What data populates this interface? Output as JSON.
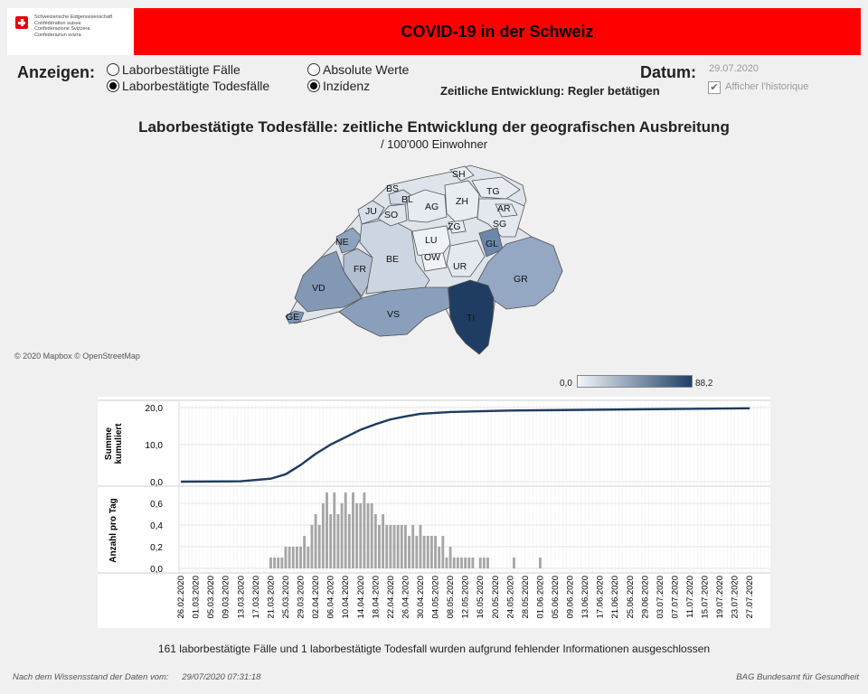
{
  "header": {
    "logo_lines": [
      "Schweizerische Eidgenossenschaft",
      "Confédération suisse",
      "Confederazione Svizzera",
      "Confederaziun svizra"
    ],
    "title": "COVID-19 in der Schweiz"
  },
  "controls": {
    "anzeigen_label": "Anzeigen:",
    "radio_faelle": "Laborbestätigte Fälle",
    "radio_todesfaelle": "Laborbestätigte Todesfälle",
    "radio_absolute": "Absolute Werte",
    "radio_inzidenz": "Inzidenz",
    "selected_measure": "Laborbestätigte Todesfälle",
    "selected_unit": "Inzidenz",
    "datum_label": "Datum:",
    "datum_value": "29.07.2020",
    "entwicklung_label": "Zeitliche Entwicklung: Regler betätigen",
    "historique_label": "Afficher l'historique",
    "historique_checked": true
  },
  "map": {
    "title": "Laborbestätigte Todesfälle: zeitliche Entwicklung der geografischen Ausbreitung",
    "subtitle": "/ 100'000 Einwohner",
    "attribution": "© 2020 Mapbox © OpenStreetMap",
    "legend_min": "0,0",
    "legend_max": "88,2",
    "cantons": [
      "SH",
      "BS",
      "BL",
      "TG",
      "ZH",
      "JU",
      "SO",
      "AG",
      "AR",
      "SG",
      "ZG",
      "NE",
      "LU",
      "GL",
      "FR",
      "BE",
      "OW",
      "UR",
      "GR",
      "VD",
      "VS",
      "TI",
      "GE"
    ]
  },
  "chart_data": [
    {
      "type": "line",
      "ylabel": "Summe kumuliert",
      "ylim": [
        0,
        20
      ],
      "yticks": [
        "0,0",
        "10,0",
        "20,0"
      ],
      "x": [
        "26.02.2020",
        "13.03.2020",
        "21.03.2020",
        "25.03.2020",
        "29.03.2020",
        "02.04.2020",
        "06.04.2020",
        "10.04.2020",
        "14.04.2020",
        "18.04.2020",
        "22.04.2020",
        "26.04.2020",
        "30.04.2020",
        "08.05.2020",
        "16.05.2020",
        "24.05.2020",
        "27.07.2020"
      ],
      "y": [
        0,
        0.1,
        0.8,
        2.0,
        4.5,
        7.5,
        10.0,
        12.0,
        14.0,
        15.5,
        16.8,
        17.6,
        18.3,
        18.8,
        19.0,
        19.2,
        19.8
      ]
    },
    {
      "type": "bar",
      "ylabel": "Anzahl pro Tag",
      "ylim": [
        0,
        0.7
      ],
      "yticks": [
        "0,0",
        "0,2",
        "0,4",
        "0,6"
      ],
      "start_date": "26.02.2020",
      "values": [
        0,
        0,
        0,
        0,
        0,
        0,
        0,
        0,
        0,
        0,
        0,
        0,
        0,
        0,
        0,
        0,
        0,
        0,
        0,
        0,
        0,
        0,
        0,
        0,
        0.1,
        0.1,
        0.1,
        0.1,
        0.2,
        0.2,
        0.2,
        0.2,
        0.2,
        0.3,
        0.2,
        0.4,
        0.5,
        0.4,
        0.6,
        0.7,
        0.5,
        0.7,
        0.5,
        0.6,
        0.7,
        0.5,
        0.7,
        0.6,
        0.6,
        0.7,
        0.6,
        0.6,
        0.5,
        0.4,
        0.5,
        0.4,
        0.4,
        0.4,
        0.4,
        0.4,
        0.4,
        0.3,
        0.4,
        0.3,
        0.4,
        0.3,
        0.3,
        0.3,
        0.3,
        0.2,
        0.3,
        0.1,
        0.2,
        0.1,
        0.1,
        0.1,
        0.1,
        0.1,
        0.1,
        0,
        0.1,
        0.1,
        0.1,
        0,
        0,
        0,
        0,
        0,
        0,
        0.1,
        0,
        0,
        0,
        0,
        0,
        0,
        0.1,
        0,
        0,
        0,
        0,
        0,
        0,
        0,
        0,
        0,
        0,
        0,
        0,
        0,
        0,
        0,
        0,
        0,
        0,
        0,
        0,
        0,
        0,
        0,
        0,
        0,
        0,
        0,
        0,
        0,
        0,
        0,
        0,
        0,
        0,
        0,
        0,
        0,
        0,
        0,
        0,
        0,
        0,
        0,
        0,
        0,
        0,
        0,
        0,
        0,
        0,
        0,
        0,
        0,
        0,
        0,
        0,
        0,
        0,
        0,
        0,
        0
      ],
      "tick_labels": [
        "26.02.2020",
        "01.03.2020",
        "05.03.2020",
        "09.03.2020",
        "13.03.2020",
        "17.03.2020",
        "21.03.2020",
        "25.03.2020",
        "29.03.2020",
        "02.04.2020",
        "06.04.2020",
        "10.04.2020",
        "14.04.2020",
        "18.04.2020",
        "22.04.2020",
        "26.04.2020",
        "30.04.2020",
        "04.05.2020",
        "08.05.2020",
        "12.05.2020",
        "16.05.2020",
        "20.05.2020",
        "24.05.2020",
        "28.05.2020",
        "01.06.2020",
        "05.06.2020",
        "09.06.2020",
        "13.06.2020",
        "17.06.2020",
        "21.06.2020",
        "25.06.2020",
        "29.06.2020",
        "03.07.2020",
        "07.07.2020",
        "11.07.2020",
        "15.07.2020",
        "19.07.2020",
        "23.07.2020",
        "27.07.2020"
      ]
    }
  ],
  "footer": {
    "note": "161 laborbestätigte Fälle und 1 laborbestätigte Todesfall wurden aufgrund fehlender Informationen ausgeschlossen",
    "stand_label": "Nach dem Wissensstand der Daten vom:",
    "stand_value": "29/07/2020 07:31:18",
    "source": "BAG Bundesamt für Gesundheit"
  },
  "colors": {
    "header_red": "#ff0000",
    "line": "#1f3a5f",
    "bars": "#a6a6a6",
    "scale_low": "#f3f5f8",
    "scale_high": "#1e3f66"
  }
}
